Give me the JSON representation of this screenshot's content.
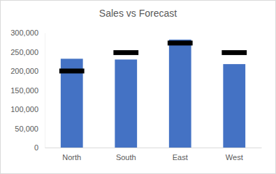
{
  "chart_data": {
    "type": "bar",
    "title": "Sales vs Forecast",
    "categories": [
      "North",
      "South",
      "East",
      "West"
    ],
    "series": [
      {
        "type": "bar",
        "color": "#4472c4",
        "values": [
          232000,
          230000,
          282000,
          218000
        ]
      },
      {
        "type": "scatter",
        "marker": "dash",
        "color": "#000000",
        "values": [
          200000,
          248000,
          273000,
          248000
        ]
      }
    ],
    "ylim": [
      0,
      300000
    ],
    "yticks": [
      0,
      {
        "value": 50000,
        "label": "50,000"
      },
      {
        "value": 100000,
        "label": "100,000"
      },
      {
        "value": 150000,
        "label": "150,000"
      },
      {
        "value": 200000,
        "label": "200,000"
      },
      {
        "value": 250000,
        "label": "250,000"
      },
      {
        "value": 300000,
        "label": "300,000"
      }
    ],
    "grid": false
  }
}
